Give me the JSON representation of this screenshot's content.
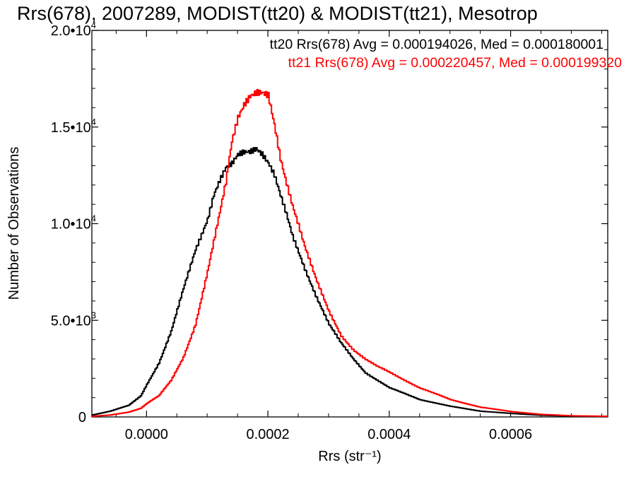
{
  "chart_data": {
    "type": "line",
    "title": "Rrs(678), 2007289, MODIST(tt20) & MODIST(tt21), Mesotrop",
    "xlabel": "Rrs (str⁻¹)",
    "ylabel": "Number of Observations",
    "xlim": [
      -9e-05,
      0.00076
    ],
    "ylim": [
      0,
      20000
    ],
    "grid": false,
    "legend_position": "top-right",
    "x_ticks": [
      {
        "value": 0.0,
        "label": "0.0000"
      },
      {
        "value": 0.0002,
        "label": "0.0002"
      },
      {
        "value": 0.0004,
        "label": "0.0004"
      },
      {
        "value": 0.0006,
        "label": "0.0006"
      }
    ],
    "y_ticks": [
      {
        "value": 0,
        "mant": "0",
        "exp": ""
      },
      {
        "value": 5000,
        "mant": "5.0•10",
        "exp": "3"
      },
      {
        "value": 10000,
        "mant": "1.0•10",
        "exp": "4"
      },
      {
        "value": 15000,
        "mant": "1.5•10",
        "exp": "4"
      },
      {
        "value": 20000,
        "mant": "2.0•10",
        "exp": "4"
      }
    ],
    "series": [
      {
        "legend": "tt20 Rrs(678) Avg = 0.000194026, Med = 0.000180001",
        "color": "#000000",
        "x": [
          -9e-05,
          -6e-05,
          -3e-05,
          -1e-05,
          0.0,
          2e-05,
          4e-05,
          6e-05,
          8e-05,
          0.0001,
          0.00011,
          0.00012,
          0.00013,
          0.00014,
          0.00015,
          0.00016,
          0.00017,
          0.00018,
          0.00019,
          0.0002,
          0.00021,
          0.00022,
          0.00023,
          0.00024,
          0.00025,
          0.00026,
          0.00028,
          0.0003,
          0.00032,
          0.00034,
          0.00036,
          0.00038,
          0.0004,
          0.00045,
          0.0005,
          0.00055,
          0.0006,
          0.00065,
          0.0007,
          0.00076
        ],
        "y": [
          100,
          300,
          600,
          1100,
          1700,
          2800,
          4400,
          6600,
          8700,
          10300,
          11500,
          12200,
          12800,
          13000,
          13500,
          13700,
          13800,
          14000,
          13700,
          13200,
          12500,
          11400,
          10400,
          9300,
          8500,
          7700,
          6200,
          4800,
          3800,
          3000,
          2300,
          1900,
          1500,
          900,
          550,
          300,
          180,
          90,
          40,
          20
        ]
      },
      {
        "legend": "tt21 Rrs(678) Avg = 0.000220457, Med = 0.000199320",
        "color": "#ff0000",
        "x": [
          -9e-05,
          -6e-05,
          -3e-05,
          -1e-05,
          0.0,
          2e-05,
          4e-05,
          6e-05,
          8e-05,
          0.0001,
          0.00011,
          0.00012,
          0.00013,
          0.00014,
          0.00015,
          0.00016,
          0.00017,
          0.00018,
          0.00019,
          0.0002,
          0.00021,
          0.00022,
          0.00023,
          0.00024,
          0.00025,
          0.00026,
          0.00028,
          0.0003,
          0.00032,
          0.00034,
          0.00036,
          0.00038,
          0.0004,
          0.00045,
          0.0005,
          0.00055,
          0.0006,
          0.00065,
          0.0007,
          0.00076
        ],
        "y": [
          30,
          100,
          250,
          450,
          700,
          1100,
          1900,
          3100,
          4800,
          7500,
          9000,
          10500,
          12100,
          14300,
          15600,
          16300,
          16700,
          16800,
          16700,
          16500,
          15000,
          13300,
          12100,
          11000,
          10000,
          8900,
          7000,
          5400,
          4200,
          3500,
          3000,
          2600,
          2300,
          1500,
          900,
          500,
          280,
          130,
          60,
          30
        ]
      }
    ]
  }
}
